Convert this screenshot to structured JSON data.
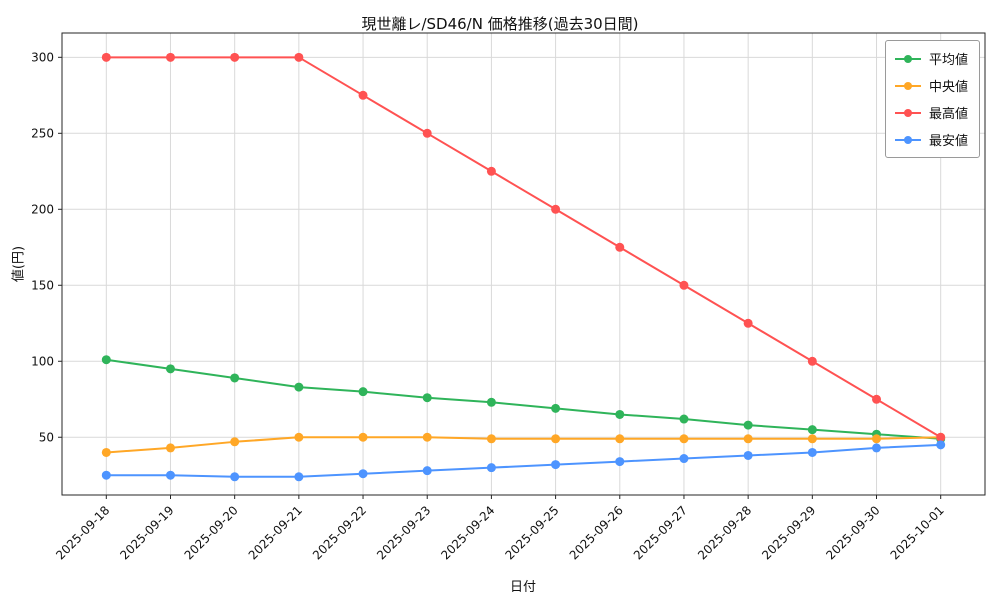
{
  "chart_data": {
    "type": "line",
    "title": "現世離レ/SD46/N 価格推移(過去30日間)",
    "xlabel": "日付",
    "ylabel": "値(円)",
    "x": [
      "2025-09-18",
      "2025-09-19",
      "2025-09-20",
      "2025-09-21",
      "2025-09-22",
      "2025-09-23",
      "2025-09-24",
      "2025-09-25",
      "2025-09-26",
      "2025-09-27",
      "2025-09-28",
      "2025-09-29",
      "2025-09-30",
      "2025-10-01"
    ],
    "series": [
      {
        "name": "平均値",
        "color": "#2fb45a",
        "values": [
          101,
          95,
          89,
          83,
          80,
          76,
          73,
          69,
          65,
          62,
          58,
          55,
          52,
          49
        ]
      },
      {
        "name": "中央値",
        "color": "#ffa726",
        "values": [
          40,
          43,
          47,
          50,
          50,
          50,
          49,
          49,
          49,
          49,
          49,
          49,
          49,
          50
        ]
      },
      {
        "name": "最高値",
        "color": "#ff5252",
        "values": [
          300,
          300,
          300,
          300,
          275,
          250,
          225,
          200,
          175,
          150,
          125,
          100,
          75,
          50
        ]
      },
      {
        "name": "最安値",
        "color": "#4d94ff",
        "values": [
          25,
          25,
          24,
          24,
          26,
          28,
          30,
          32,
          34,
          36,
          38,
          40,
          43,
          45
        ]
      }
    ],
    "ylim": [
      12,
      316
    ],
    "yticks": [
      50,
      100,
      150,
      200,
      250,
      300
    ],
    "grid": true,
    "legend_position": "top-right"
  }
}
